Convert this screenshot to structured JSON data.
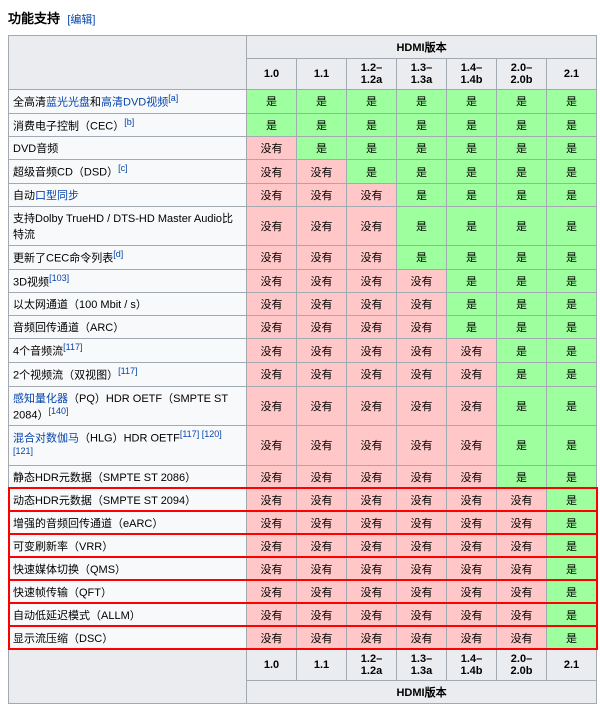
{
  "header": {
    "title": "功能支持",
    "edit": "[编辑]"
  },
  "table": {
    "group_header": "HDMI版本",
    "versions": [
      "1.0",
      "1.1",
      "1.2–1.2a",
      "1.3–1.3a",
      "1.4–1.4b",
      "2.0–2.0b",
      "2.1"
    ],
    "yes_label": "是",
    "no_label": "没有",
    "rows": [
      {
        "label": "全高清",
        "link1": "蓝光光盘",
        "mid": "和",
        "link2": "高清DVD视频",
        "sup": "[a]",
        "cells": [
          1,
          1,
          1,
          1,
          1,
          1,
          1
        ]
      },
      {
        "label": "消费电子控制（CEC）",
        "sup": "[b]",
        "cells": [
          1,
          1,
          1,
          1,
          1,
          1,
          1
        ]
      },
      {
        "label": "DVD音频",
        "cells": [
          0,
          1,
          1,
          1,
          1,
          1,
          1
        ]
      },
      {
        "label": "超级音频CD（DSD）",
        "sup": "[c]",
        "cells": [
          0,
          0,
          1,
          1,
          1,
          1,
          1
        ]
      },
      {
        "label": "自动",
        "link1": "口型同步",
        "cells": [
          0,
          0,
          0,
          1,
          1,
          1,
          1
        ]
      },
      {
        "label": "支持Dolby TrueHD / DTS-HD Master Audio",
        "extra": "比特流",
        "cells": [
          0,
          0,
          0,
          1,
          1,
          1,
          1
        ]
      },
      {
        "label": "更新了CEC命令列表",
        "sup": "[d]",
        "cells": [
          0,
          0,
          0,
          1,
          1,
          1,
          1
        ]
      },
      {
        "label": "3D视频",
        "sup": "[103]",
        "cells": [
          0,
          0,
          0,
          0,
          1,
          1,
          1
        ]
      },
      {
        "label": "以太网通道（100 Mbit / s）",
        "cells": [
          0,
          0,
          0,
          0,
          1,
          1,
          1
        ]
      },
      {
        "label": "音频回传通道（ARC）",
        "cells": [
          0,
          0,
          0,
          0,
          1,
          1,
          1
        ]
      },
      {
        "label": "4个音频流",
        "sup": "[117]",
        "cells": [
          0,
          0,
          0,
          0,
          0,
          1,
          1
        ]
      },
      {
        "label": "2个视频流（双视图）",
        "sup": "[117]",
        "cells": [
          0,
          0,
          0,
          0,
          0,
          1,
          1
        ]
      },
      {
        "link1": "感知量化器",
        "label": "（PQ）HDR OETF（SMPTE ST 2084）",
        "sup": "[140]",
        "cells": [
          0,
          0,
          0,
          0,
          0,
          1,
          1
        ]
      },
      {
        "link1": "混合对数伽马",
        "label": "（HLG）HDR OETF",
        "sup": "[117] [120] [121]",
        "cells": [
          0,
          0,
          0,
          0,
          0,
          1,
          1
        ]
      },
      {
        "label": "静态HDR元数据（SMPTE ST 2086）",
        "cells": [
          0,
          0,
          0,
          0,
          0,
          1,
          1
        ]
      },
      {
        "label": "动态HDR元数据（SMPTE ST 2094）",
        "cells": [
          0,
          0,
          0,
          0,
          0,
          0,
          1
        ],
        "hl": "start"
      },
      {
        "label": "增强的音频回传通道（eARC）",
        "cells": [
          0,
          0,
          0,
          0,
          0,
          0,
          1
        ]
      },
      {
        "label": "可变刷新率（VRR）",
        "cells": [
          0,
          0,
          0,
          0,
          0,
          0,
          1
        ]
      },
      {
        "label": "快速媒体切换（QMS）",
        "cells": [
          0,
          0,
          0,
          0,
          0,
          0,
          1
        ]
      },
      {
        "label": "快速帧传输（QFT）",
        "cells": [
          0,
          0,
          0,
          0,
          0,
          0,
          1
        ]
      },
      {
        "label": "自动低延迟模式（ALLM）",
        "cells": [
          0,
          0,
          0,
          0,
          0,
          0,
          1
        ]
      },
      {
        "label": "显示流压缩（DSC）",
        "cells": [
          0,
          0,
          0,
          0,
          0,
          0,
          1
        ],
        "hl": "end"
      }
    ]
  }
}
